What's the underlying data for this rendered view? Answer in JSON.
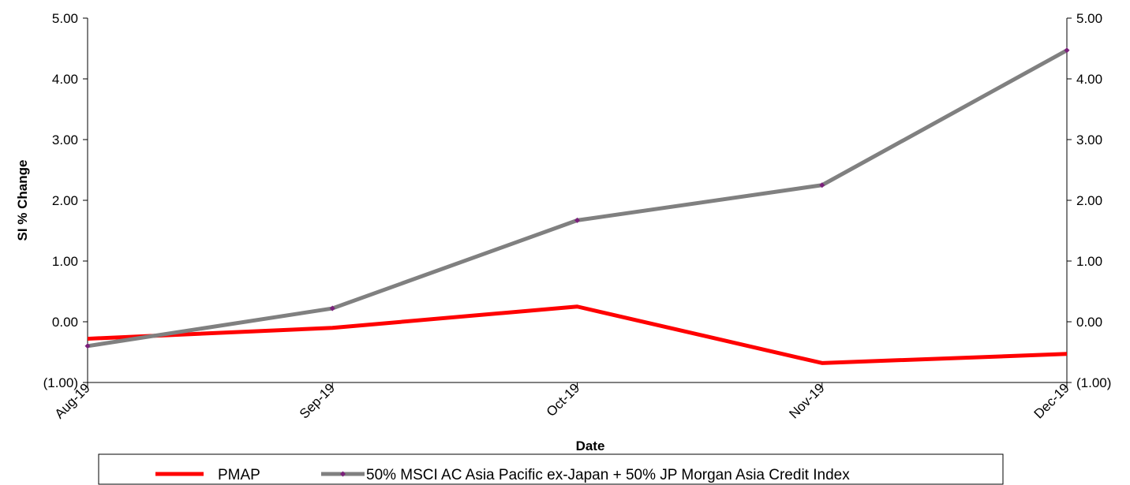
{
  "chart_data": {
    "type": "line",
    "xlabel": "Date",
    "ylabel": "SI % Change",
    "categories": [
      "Aug-19",
      "Sep-19",
      "Oct-19",
      "Nov-19",
      "Dec-19"
    ],
    "ylim": [
      -1,
      5
    ],
    "y_ticks": [
      "(1.00)",
      "0.00",
      "1.00",
      "2.00",
      "3.00",
      "4.00",
      "5.00"
    ],
    "y_tick_values": [
      -1,
      0,
      1,
      2,
      3,
      4,
      5
    ],
    "secondary_y_ticks": [
      "(1.00)",
      "0.00",
      "1.00",
      "2.00",
      "3.00",
      "4.00",
      "5.00"
    ],
    "negative_tick_color": "#ff0000",
    "series": [
      {
        "name": "PMAP",
        "color": "#ff0000",
        "marker": "none",
        "values": [
          -0.28,
          -0.1,
          0.25,
          -0.68,
          -0.53
        ]
      },
      {
        "name": "50% MSCI AC Asia Pacific ex-Japan + 50% JP Morgan Asia Credit Index",
        "color": "#808080",
        "marker_color": "#7b1f7b",
        "marker": "diamond",
        "values": [
          -0.4,
          0.22,
          1.67,
          2.25,
          4.47
        ]
      }
    ],
    "grid": false,
    "legend_position": "bottom"
  }
}
